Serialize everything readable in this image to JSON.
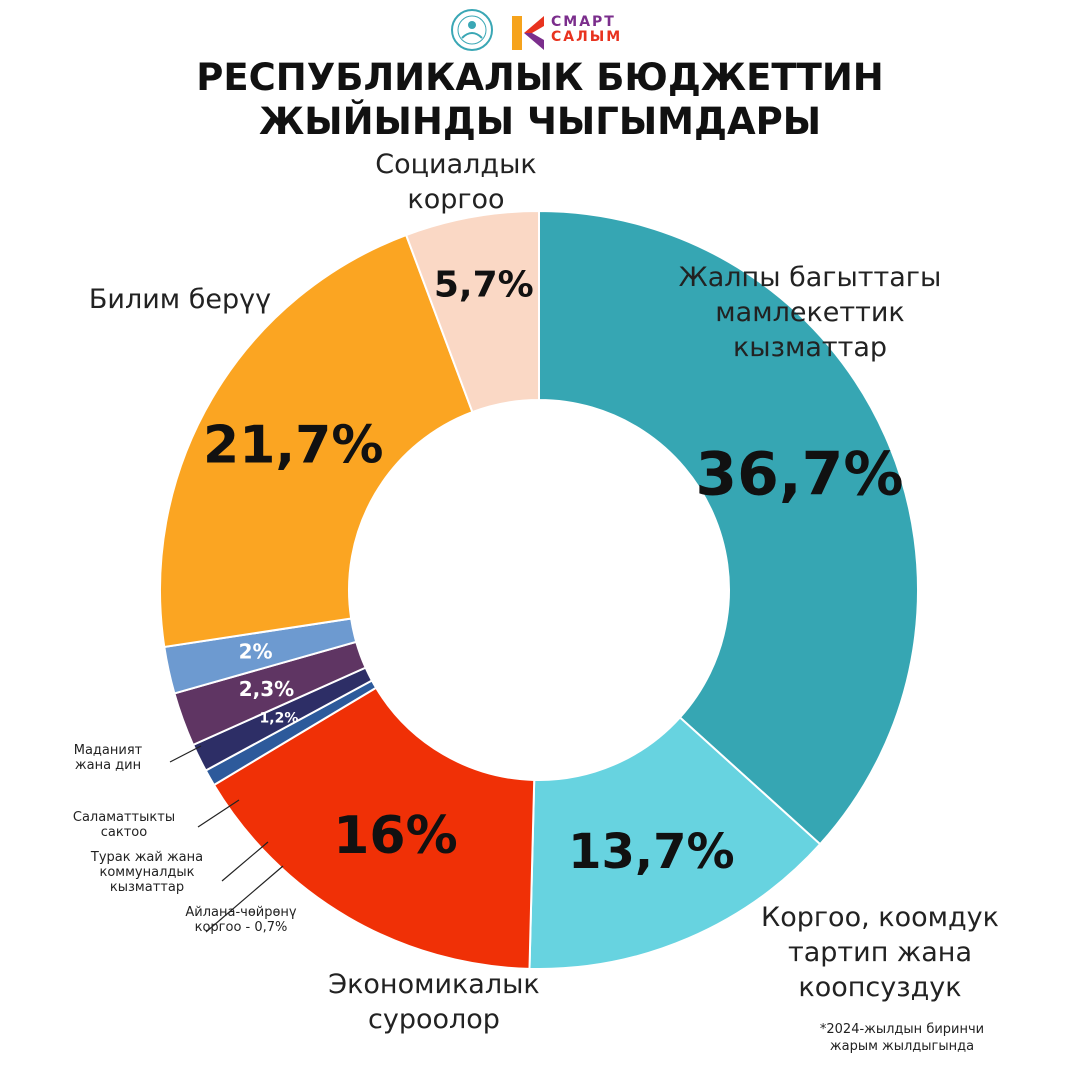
{
  "header": {
    "title_lines": [
      "РЕСПУБЛИКАЛЫК БЮДЖЕТТИН",
      "ЖЫЙЫНДЫ ЧЫГЫМДАРЫ"
    ],
    "logo": {
      "line1": "СМАРТ",
      "line2": "САЛЫМ",
      "emblem_icon": "emblem-icon",
      "k_icon": "k-logo-icon"
    }
  },
  "footnote": [
    "*2024-жылдын биринчи",
    "жарым жылдыгында"
  ],
  "chart_data": {
    "type": "pie",
    "donut": true,
    "title": "РЕСПУБЛИКАЛЫК БЮДЖЕТТИН ЖЫЙЫНДЫ ЧЫГЫМДАРЫ",
    "slices": [
      {
        "label": "Жалпы багыттагы мамлекеттик кызматтар",
        "label_lines": [
          "Жалпы багыттагы",
          "мамлекеттик",
          "кызматтар"
        ],
        "value": 36.7,
        "value_label": "36,7%",
        "color": "#36a6b3",
        "text_color": "#111111"
      },
      {
        "label": "Коргоо, коомдук тартип жана коопсуздук",
        "label_lines": [
          "Коргоо, коомдук",
          "тартип жана",
          "коопсуздук"
        ],
        "value": 13.7,
        "value_label": "13,7%",
        "color": "#67d3e0",
        "text_color": "#111111"
      },
      {
        "label": "Экономикалык суроолор",
        "label_lines": [
          "Экономикалык",
          "суроолор"
        ],
        "value": 16,
        "value_label": "16%",
        "color": "#f03006",
        "text_color": "#111111"
      },
      {
        "label": "Айлана-чөйрөнү коргоо - 0,7%",
        "label_lines": [
          "Айлана-чөйрөнү",
          "коргоо - 0,7%"
        ],
        "value": 0.7,
        "value_label": "",
        "color": "#2d5a9b",
        "text_color": "#ffffff"
      },
      {
        "label": "Турак жай жана коммуналдык кызматтар",
        "label_lines": [
          "Турак жай жана",
          "коммуналдык",
          "кызматтар"
        ],
        "value": 1.2,
        "value_label": "1,2%",
        "color": "#2d2e66",
        "text_color": "#ffffff"
      },
      {
        "label": "Саламаттыкты сактоо",
        "label_lines": [
          "Саламаттыкты",
          "сактоо"
        ],
        "value": 2.3,
        "value_label": "2,3%",
        "color": "#5f3563",
        "text_color": "#ffffff"
      },
      {
        "label": "Маданият жана дин",
        "label_lines": [
          "Маданият",
          "жана дин"
        ],
        "value": 2,
        "value_label": "2%",
        "color": "#6d9ad0",
        "text_color": "#ffffff"
      },
      {
        "label": "Билим берүү",
        "label_lines": [
          "Билим берүү"
        ],
        "value": 21.7,
        "value_label": "21,7%",
        "color": "#fba522",
        "text_color": "#111111"
      },
      {
        "label": "Социалдык коргоо",
        "label_lines": [
          "Социалдык",
          "коргоо"
        ],
        "value": 5.7,
        "value_label": "5,7%",
        "color": "#fad8c5",
        "text_color": "#111111"
      }
    ]
  }
}
